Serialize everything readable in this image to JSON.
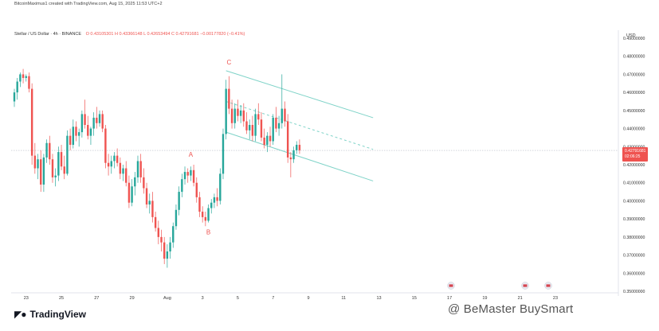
{
  "header": {
    "attribution": "BitcoinMaximus1 created with TradingView.com, Aug 15, 2025 11:53 UTC+2",
    "symbol": "Stellar / US Dollar · 4h · BINANCE",
    "ohlc_text": "O 0.43105301  H 0.43366148  L 0.42653494  C 0.42791681  −0.00177820 (−0.41%)"
  },
  "price_axis": {
    "currency": "USD",
    "last_price": "0.42791681",
    "countdown": "02:06:25"
  },
  "footer": {
    "logo_text": "TradingView",
    "watermark": "@ BeMaster BuySmart"
  },
  "colors": {
    "up": "#26a69a",
    "down": "#ef5350",
    "channel": "#7fd3c8",
    "grid": "#f0f3fa"
  },
  "chart_data": {
    "type": "candlestick",
    "title": "Stellar / US Dollar · 4h · BINANCE",
    "ylim": [
      0.35,
      0.49
    ],
    "y_ticks": [
      "0.49000000",
      "0.48000000",
      "0.47000000",
      "0.46000000",
      "0.45000000",
      "0.44000000",
      "0.43000000",
      "0.42000000",
      "0.41000000",
      "0.40000000",
      "0.39000000",
      "0.38000000",
      "0.37000000",
      "0.36000000",
      "0.35000000"
    ],
    "x_ticks": [
      {
        "label": "23",
        "i": 4
      },
      {
        "label": "25",
        "i": 16
      },
      {
        "label": "27",
        "i": 28
      },
      {
        "label": "29",
        "i": 40
      },
      {
        "label": "Aug",
        "i": 52
      },
      {
        "label": "3",
        "i": 64
      },
      {
        "label": "5",
        "i": 76
      },
      {
        "label": "7",
        "i": 88
      },
      {
        "label": "9",
        "i": 100
      },
      {
        "label": "11",
        "i": 112
      },
      {
        "label": "13",
        "i": 124
      },
      {
        "label": "15",
        "i": 136
      },
      {
        "label": "17",
        "i": 148
      },
      {
        "label": "19",
        "i": 160
      },
      {
        "label": "21",
        "i": 172
      },
      {
        "label": "23",
        "i": 184
      }
    ],
    "candles": [
      {
        "o": 0.455,
        "h": 0.462,
        "l": 0.452,
        "c": 0.46
      },
      {
        "o": 0.46,
        "h": 0.468,
        "l": 0.456,
        "c": 0.466
      },
      {
        "o": 0.466,
        "h": 0.471,
        "l": 0.463,
        "c": 0.47
      },
      {
        "o": 0.47,
        "h": 0.473,
        "l": 0.465,
        "c": 0.468
      },
      {
        "o": 0.468,
        "h": 0.47,
        "l": 0.466,
        "c": 0.469
      },
      {
        "o": 0.469,
        "h": 0.471,
        "l": 0.46,
        "c": 0.462
      },
      {
        "o": 0.462,
        "h": 0.465,
        "l": 0.42,
        "c": 0.425
      },
      {
        "o": 0.425,
        "h": 0.432,
        "l": 0.415,
        "c": 0.418
      },
      {
        "o": 0.418,
        "h": 0.426,
        "l": 0.412,
        "c": 0.423
      },
      {
        "o": 0.423,
        "h": 0.428,
        "l": 0.405,
        "c": 0.409
      },
      {
        "o": 0.409,
        "h": 0.426,
        "l": 0.405,
        "c": 0.424
      },
      {
        "o": 0.424,
        "h": 0.434,
        "l": 0.421,
        "c": 0.432
      },
      {
        "o": 0.432,
        "h": 0.436,
        "l": 0.42,
        "c": 0.423
      },
      {
        "o": 0.423,
        "h": 0.426,
        "l": 0.41,
        "c": 0.413
      },
      {
        "o": 0.413,
        "h": 0.418,
        "l": 0.408,
        "c": 0.414
      },
      {
        "o": 0.414,
        "h": 0.43,
        "l": 0.411,
        "c": 0.427
      },
      {
        "o": 0.427,
        "h": 0.431,
        "l": 0.417,
        "c": 0.419
      },
      {
        "o": 0.419,
        "h": 0.425,
        "l": 0.412,
        "c": 0.415
      },
      {
        "o": 0.415,
        "h": 0.439,
        "l": 0.414,
        "c": 0.436
      },
      {
        "o": 0.436,
        "h": 0.44,
        "l": 0.428,
        "c": 0.431
      },
      {
        "o": 0.431,
        "h": 0.445,
        "l": 0.429,
        "c": 0.441
      },
      {
        "o": 0.441,
        "h": 0.444,
        "l": 0.433,
        "c": 0.436
      },
      {
        "o": 0.436,
        "h": 0.44,
        "l": 0.43,
        "c": 0.438
      },
      {
        "o": 0.438,
        "h": 0.45,
        "l": 0.435,
        "c": 0.448
      },
      {
        "o": 0.448,
        "h": 0.456,
        "l": 0.44,
        "c": 0.442
      },
      {
        "o": 0.442,
        "h": 0.447,
        "l": 0.434,
        "c": 0.436
      },
      {
        "o": 0.436,
        "h": 0.441,
        "l": 0.431,
        "c": 0.44
      },
      {
        "o": 0.44,
        "h": 0.449,
        "l": 0.436,
        "c": 0.446
      },
      {
        "o": 0.446,
        "h": 0.452,
        "l": 0.44,
        "c": 0.443
      },
      {
        "o": 0.443,
        "h": 0.45,
        "l": 0.441,
        "c": 0.448
      },
      {
        "o": 0.448,
        "h": 0.45,
        "l": 0.438,
        "c": 0.44
      },
      {
        "o": 0.44,
        "h": 0.442,
        "l": 0.418,
        "c": 0.421
      },
      {
        "o": 0.421,
        "h": 0.426,
        "l": 0.414,
        "c": 0.419
      },
      {
        "o": 0.419,
        "h": 0.425,
        "l": 0.415,
        "c": 0.422
      },
      {
        "o": 0.422,
        "h": 0.427,
        "l": 0.418,
        "c": 0.425
      },
      {
        "o": 0.425,
        "h": 0.429,
        "l": 0.419,
        "c": 0.421
      },
      {
        "o": 0.421,
        "h": 0.424,
        "l": 0.412,
        "c": 0.415
      },
      {
        "o": 0.415,
        "h": 0.42,
        "l": 0.411,
        "c": 0.418
      },
      {
        "o": 0.418,
        "h": 0.422,
        "l": 0.408,
        "c": 0.41
      },
      {
        "o": 0.41,
        "h": 0.414,
        "l": 0.396,
        "c": 0.399
      },
      {
        "o": 0.399,
        "h": 0.412,
        "l": 0.397,
        "c": 0.408
      },
      {
        "o": 0.408,
        "h": 0.416,
        "l": 0.403,
        "c": 0.413
      },
      {
        "o": 0.413,
        "h": 0.425,
        "l": 0.41,
        "c": 0.422
      },
      {
        "o": 0.422,
        "h": 0.426,
        "l": 0.41,
        "c": 0.413
      },
      {
        "o": 0.413,
        "h": 0.418,
        "l": 0.404,
        "c": 0.407
      },
      {
        "o": 0.407,
        "h": 0.41,
        "l": 0.396,
        "c": 0.398
      },
      {
        "o": 0.398,
        "h": 0.404,
        "l": 0.393,
        "c": 0.4
      },
      {
        "o": 0.4,
        "h": 0.405,
        "l": 0.388,
        "c": 0.391
      },
      {
        "o": 0.391,
        "h": 0.394,
        "l": 0.383,
        "c": 0.385
      },
      {
        "o": 0.385,
        "h": 0.389,
        "l": 0.376,
        "c": 0.38
      },
      {
        "o": 0.38,
        "h": 0.384,
        "l": 0.372,
        "c": 0.377
      },
      {
        "o": 0.377,
        "h": 0.38,
        "l": 0.365,
        "c": 0.368
      },
      {
        "o": 0.368,
        "h": 0.376,
        "l": 0.363,
        "c": 0.372
      },
      {
        "o": 0.372,
        "h": 0.38,
        "l": 0.368,
        "c": 0.377
      },
      {
        "o": 0.377,
        "h": 0.388,
        "l": 0.374,
        "c": 0.386
      },
      {
        "o": 0.386,
        "h": 0.398,
        "l": 0.384,
        "c": 0.395
      },
      {
        "o": 0.395,
        "h": 0.408,
        "l": 0.392,
        "c": 0.405
      },
      {
        "o": 0.405,
        "h": 0.415,
        "l": 0.402,
        "c": 0.412
      },
      {
        "o": 0.412,
        "h": 0.419,
        "l": 0.409,
        "c": 0.416
      },
      {
        "o": 0.416,
        "h": 0.418,
        "l": 0.41,
        "c": 0.414
      },
      {
        "o": 0.414,
        "h": 0.419,
        "l": 0.411,
        "c": 0.417
      },
      {
        "o": 0.417,
        "h": 0.42,
        "l": 0.408,
        "c": 0.41
      },
      {
        "o": 0.41,
        "h": 0.413,
        "l": 0.399,
        "c": 0.402
      },
      {
        "o": 0.402,
        "h": 0.405,
        "l": 0.391,
        "c": 0.394
      },
      {
        "o": 0.394,
        "h": 0.397,
        "l": 0.388,
        "c": 0.391
      },
      {
        "o": 0.391,
        "h": 0.394,
        "l": 0.386,
        "c": 0.389
      },
      {
        "o": 0.389,
        "h": 0.398,
        "l": 0.388,
        "c": 0.396
      },
      {
        "o": 0.396,
        "h": 0.401,
        "l": 0.393,
        "c": 0.399
      },
      {
        "o": 0.399,
        "h": 0.404,
        "l": 0.396,
        "c": 0.402
      },
      {
        "o": 0.402,
        "h": 0.407,
        "l": 0.397,
        "c": 0.4
      },
      {
        "o": 0.4,
        "h": 0.418,
        "l": 0.398,
        "c": 0.415
      },
      {
        "o": 0.415,
        "h": 0.44,
        "l": 0.412,
        "c": 0.437
      },
      {
        "o": 0.437,
        "h": 0.467,
        "l": 0.434,
        "c": 0.462
      },
      {
        "o": 0.462,
        "h": 0.469,
        "l": 0.448,
        "c": 0.451
      },
      {
        "o": 0.451,
        "h": 0.456,
        "l": 0.44,
        "c": 0.443
      },
      {
        "o": 0.443,
        "h": 0.454,
        "l": 0.44,
        "c": 0.451
      },
      {
        "o": 0.451,
        "h": 0.456,
        "l": 0.444,
        "c": 0.447
      },
      {
        "o": 0.447,
        "h": 0.453,
        "l": 0.443,
        "c": 0.45
      },
      {
        "o": 0.45,
        "h": 0.454,
        "l": 0.441,
        "c": 0.444
      },
      {
        "o": 0.444,
        "h": 0.449,
        "l": 0.437,
        "c": 0.439
      },
      {
        "o": 0.439,
        "h": 0.445,
        "l": 0.434,
        "c": 0.442
      },
      {
        "o": 0.442,
        "h": 0.447,
        "l": 0.433,
        "c": 0.436
      },
      {
        "o": 0.436,
        "h": 0.451,
        "l": 0.433,
        "c": 0.448
      },
      {
        "o": 0.448,
        "h": 0.454,
        "l": 0.442,
        "c": 0.445
      },
      {
        "o": 0.445,
        "h": 0.449,
        "l": 0.433,
        "c": 0.435
      },
      {
        "o": 0.435,
        "h": 0.44,
        "l": 0.429,
        "c": 0.431
      },
      {
        "o": 0.431,
        "h": 0.438,
        "l": 0.427,
        "c": 0.436
      },
      {
        "o": 0.436,
        "h": 0.441,
        "l": 0.43,
        "c": 0.433
      },
      {
        "o": 0.433,
        "h": 0.448,
        "l": 0.431,
        "c": 0.446
      },
      {
        "o": 0.446,
        "h": 0.452,
        "l": 0.438,
        "c": 0.44
      },
      {
        "o": 0.44,
        "h": 0.447,
        "l": 0.436,
        "c": 0.443
      },
      {
        "o": 0.443,
        "h": 0.47,
        "l": 0.44,
        "c": 0.451
      },
      {
        "o": 0.451,
        "h": 0.455,
        "l": 0.441,
        "c": 0.444
      },
      {
        "o": 0.444,
        "h": 0.448,
        "l": 0.421,
        "c": 0.424
      },
      {
        "o": 0.424,
        "h": 0.427,
        "l": 0.413,
        "c": 0.423
      },
      {
        "o": 0.423,
        "h": 0.43,
        "l": 0.421,
        "c": 0.428
      },
      {
        "o": 0.428,
        "h": 0.433,
        "l": 0.426,
        "c": 0.431
      },
      {
        "o": 0.431,
        "h": 0.434,
        "l": 0.426,
        "c": 0.428
      }
    ],
    "annotations": [
      {
        "text": "A",
        "i": 60,
        "y": 0.4245
      },
      {
        "text": "B",
        "i": 66,
        "y": 0.3815
      },
      {
        "text": "C",
        "i": 73,
        "y": 0.4755
      }
    ],
    "channel": {
      "upper": [
        [
          72,
          0.472
        ],
        [
          122,
          0.446
        ]
      ],
      "lower": [
        [
          72,
          0.438
        ],
        [
          122,
          0.411
        ]
      ],
      "middle": [
        [
          72,
          0.455
        ],
        [
          122,
          0.4285
        ]
      ]
    },
    "last_price_line": 0.42791681
  }
}
